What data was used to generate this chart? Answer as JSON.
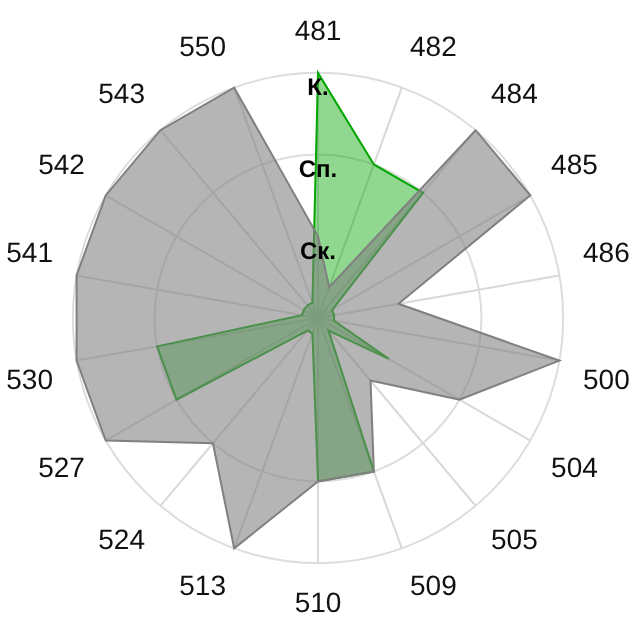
{
  "chart_data": {
    "type": "radar",
    "categories": [
      "481",
      "482",
      "484",
      "485",
      "486",
      "500",
      "504",
      "505",
      "509",
      "510",
      "513",
      "524",
      "527",
      "530",
      "541",
      "542",
      "543",
      "550"
    ],
    "series": [
      {
        "color": "#808080",
        "values": [
          1,
          0.4,
          3,
          3,
          1,
          3,
          2,
          1,
          2,
          2,
          3,
          2,
          3,
          3,
          3,
          3,
          3,
          3
        ]
      },
      {
        "color": "#03a603",
        "values": [
          3,
          2,
          2,
          0.2,
          0.2,
          0.2,
          1,
          0.2,
          2,
          2,
          0.2,
          0.2,
          2,
          2,
          0.2,
          0.2,
          0.2,
          0.2
        ]
      }
    ],
    "ylim": [
      0,
      3
    ],
    "yticks": [
      {
        "value": 1,
        "label": "Ск."
      },
      {
        "value": 2,
        "label": "Сп."
      },
      {
        "value": 3,
        "label": "К."
      }
    ],
    "grid": true,
    "legend": false
  }
}
